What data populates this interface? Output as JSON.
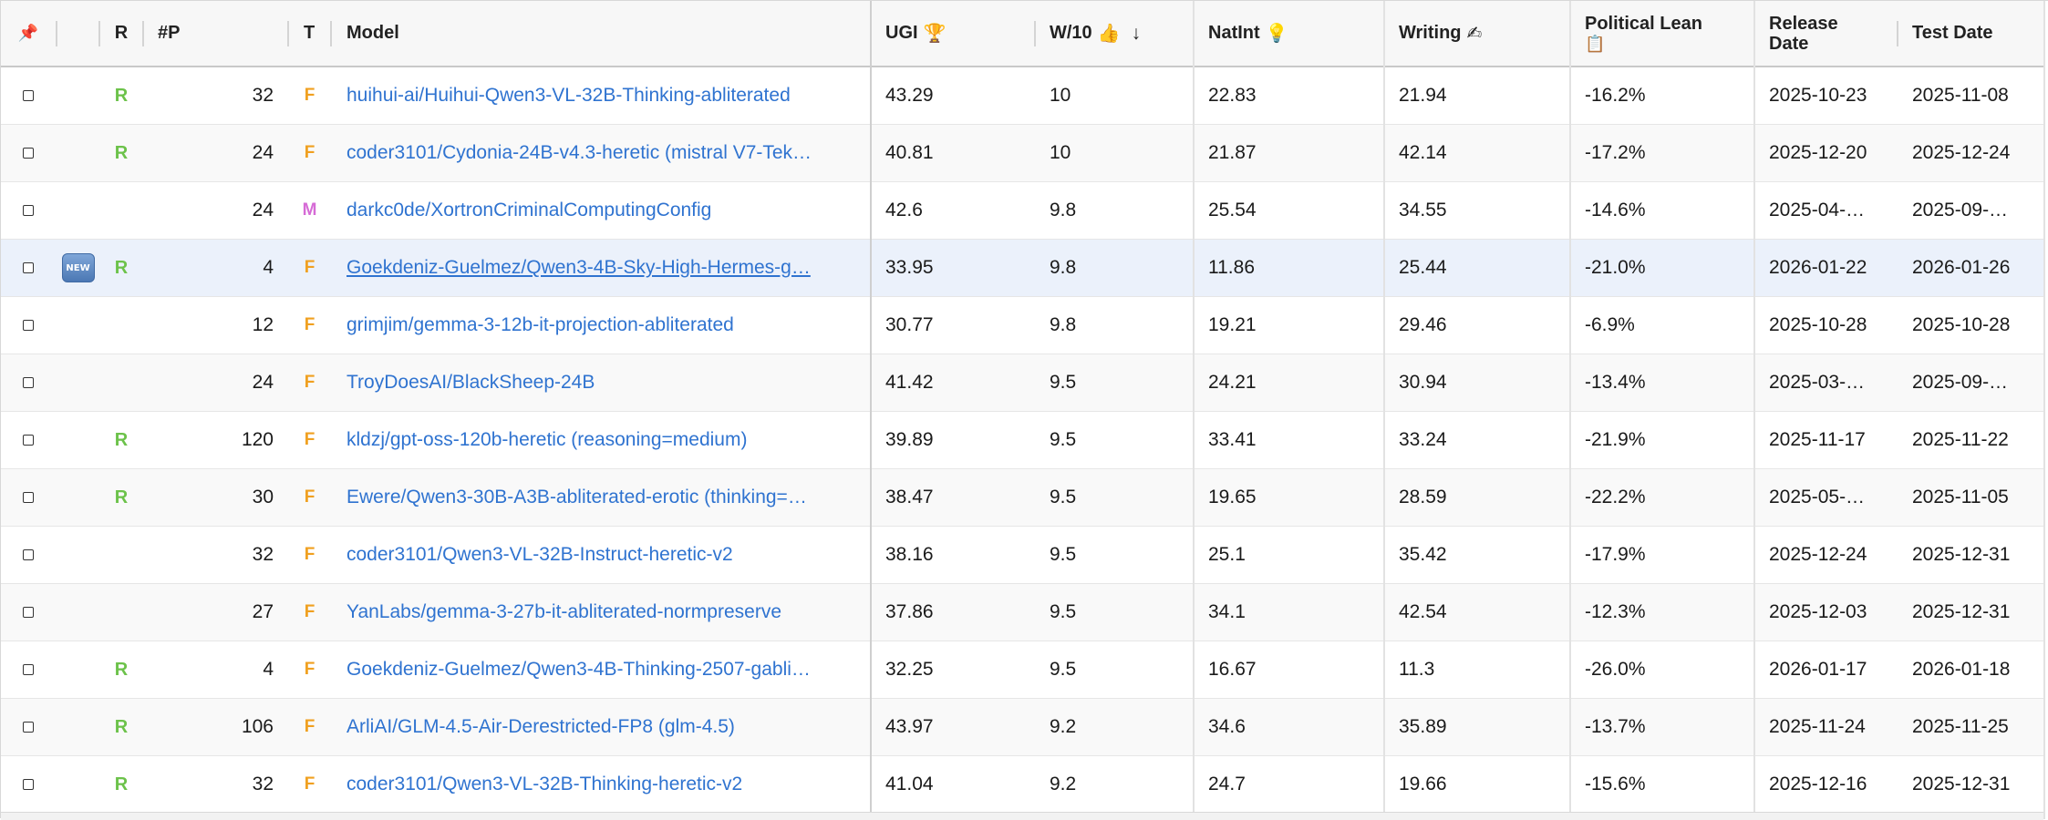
{
  "header": {
    "pin_icon": "pushpin-icon",
    "r": "R",
    "params": "#P",
    "t": "T",
    "model": "Model",
    "ugi": "UGI",
    "ugi_icon": "🏆",
    "w10": "W/10",
    "w10_icon": "👍",
    "w10_sort": "↓",
    "natint": "NatInt",
    "natint_icon": "💡",
    "writing": "Writing",
    "writing_icon": "✍",
    "political_line1": "Political Lean",
    "political_icon": "📋",
    "release_line1": "Release",
    "release_line2": "Date",
    "test_date": "Test Date"
  },
  "rows": [
    {
      "new": false,
      "r": "R",
      "params": "32",
      "t": "F",
      "model": "huihui-ai/Huihui-Qwen3-VL-32B-Thinking-abliterated",
      "ugi": "43.29",
      "w10": "10",
      "natint": "22.83",
      "writing": "21.94",
      "political": "-16.2%",
      "release": "2025-10-23",
      "test": "2025-11-08"
    },
    {
      "new": false,
      "r": "R",
      "params": "24",
      "t": "F",
      "model": "coder3101/Cydonia-24B-v4.3-heretic (mistral V7-Tek…",
      "ugi": "40.81",
      "w10": "10",
      "natint": "21.87",
      "writing": "42.14",
      "political": "-17.2%",
      "release": "2025-12-20",
      "test": "2025-12-24"
    },
    {
      "new": false,
      "r": "",
      "params": "24",
      "t": "M",
      "model": "darkc0de/XortronCriminalComputingConfig",
      "ugi": "42.6",
      "w10": "9.8",
      "natint": "25.54",
      "writing": "34.55",
      "political": "-14.6%",
      "release": "2025-04-…",
      "test": "2025-09-…"
    },
    {
      "new": true,
      "new_label": "NEW",
      "r": "R",
      "params": "4",
      "t": "F",
      "model": "Goekdeniz-Guelmez/Qwen3-4B-Sky-High-Hermes-g…",
      "ugi": "33.95",
      "w10": "9.8",
      "natint": "11.86",
      "writing": "25.44",
      "political": "-21.0%",
      "release": "2026-01-22",
      "test": "2026-01-26"
    },
    {
      "new": false,
      "r": "",
      "params": "12",
      "t": "F",
      "model": "grimjim/gemma-3-12b-it-projection-abliterated",
      "ugi": "30.77",
      "w10": "9.8",
      "natint": "19.21",
      "writing": "29.46",
      "political": "-6.9%",
      "release": "2025-10-28",
      "test": "2025-10-28"
    },
    {
      "new": false,
      "r": "",
      "params": "24",
      "t": "F",
      "model": "TroyDoesAI/BlackSheep-24B",
      "ugi": "41.42",
      "w10": "9.5",
      "natint": "24.21",
      "writing": "30.94",
      "political": "-13.4%",
      "release": "2025-03-…",
      "test": "2025-09-…"
    },
    {
      "new": false,
      "r": "R",
      "params": "120",
      "t": "F",
      "model": "kldzj/gpt-oss-120b-heretic (reasoning=medium)",
      "ugi": "39.89",
      "w10": "9.5",
      "natint": "33.41",
      "writing": "33.24",
      "political": "-21.9%",
      "release": "2025-11-17",
      "test": "2025-11-22"
    },
    {
      "new": false,
      "r": "R",
      "params": "30",
      "t": "F",
      "model": "Ewere/Qwen3-30B-A3B-abliterated-erotic (thinking=…",
      "ugi": "38.47",
      "w10": "9.5",
      "natint": "19.65",
      "writing": "28.59",
      "political": "-22.2%",
      "release": "2025-05-…",
      "test": "2025-11-05"
    },
    {
      "new": false,
      "r": "",
      "params": "32",
      "t": "F",
      "model": "coder3101/Qwen3-VL-32B-Instruct-heretic-v2",
      "ugi": "38.16",
      "w10": "9.5",
      "natint": "25.1",
      "writing": "35.42",
      "political": "-17.9%",
      "release": "2025-12-24",
      "test": "2025-12-31"
    },
    {
      "new": false,
      "r": "",
      "params": "27",
      "t": "F",
      "model": "YanLabs/gemma-3-27b-it-abliterated-normpreserve",
      "ugi": "37.86",
      "w10": "9.5",
      "natint": "34.1",
      "writing": "42.54",
      "political": "-12.3%",
      "release": "2025-12-03",
      "test": "2025-12-31"
    },
    {
      "new": false,
      "r": "R",
      "params": "4",
      "t": "F",
      "model": "Goekdeniz-Guelmez/Qwen3-4B-Thinking-2507-gabli…",
      "ugi": "32.25",
      "w10": "9.5",
      "natint": "16.67",
      "writing": "11.3",
      "political": "-26.0%",
      "release": "2026-01-17",
      "test": "2026-01-18"
    },
    {
      "new": false,
      "r": "R",
      "params": "106",
      "t": "F",
      "model": "ArliAI/GLM-4.5-Air-Derestricted-FP8 (glm-4.5)",
      "ugi": "43.97",
      "w10": "9.2",
      "natint": "34.6",
      "writing": "35.89",
      "political": "-13.7%",
      "release": "2025-11-24",
      "test": "2025-11-25"
    },
    {
      "new": false,
      "r": "R",
      "params": "32",
      "t": "F",
      "model": "coder3101/Qwen3-VL-32B-Thinking-heretic-v2",
      "ugi": "41.04",
      "w10": "9.2",
      "natint": "24.7",
      "writing": "19.66",
      "political": "-15.6%",
      "release": "2025-12-16",
      "test": "2025-12-31"
    }
  ],
  "colors": {
    "link": "#2f73d0",
    "r_flag": "#6cc24a",
    "type_f": "#f0a020",
    "type_m": "#d66bd6",
    "selected_row": "#ebf1fb"
  }
}
